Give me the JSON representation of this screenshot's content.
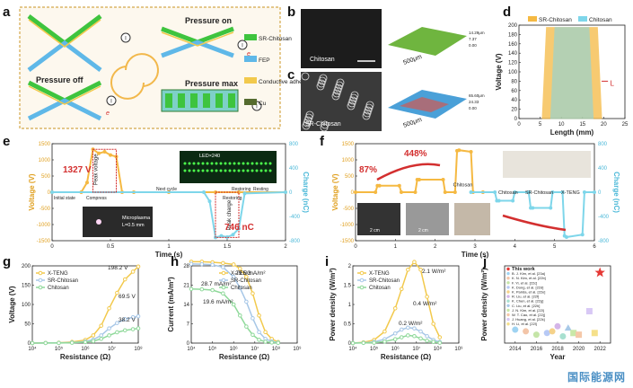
{
  "panel_letters": [
    "a",
    "b",
    "c",
    "d",
    "e",
    "f",
    "g",
    "h",
    "i",
    "j"
  ],
  "watermark": "国际能源网",
  "colors": {
    "sr": "#f5b942",
    "chitosan": "#7ed6ea",
    "xteng": "#f2c94c",
    "srline": "#a7c7e7",
    "chline": "#8fd99a",
    "red": "#d32f2f",
    "green": "#3dbb3d"
  },
  "panel_a": {
    "pressure_on": "Pressure on",
    "pressure_off": "Pressure off",
    "pressure_max": "Pressure max",
    "legend": [
      {
        "label": "SR-Chitosan",
        "color": "#3ec43e"
      },
      {
        "label": "FEP",
        "color": "#5fb8e8"
      },
      {
        "label": "Conductive adhesive",
        "color": "#f2c94c"
      },
      {
        "label": "Cu",
        "color": "#556b2f"
      }
    ],
    "meter_symbol": "I",
    "e_symbol": "e"
  },
  "panel_b": {
    "label": "Chitosan",
    "scale": "500μm",
    "colorbar": [
      "14.29μm",
      "7.37",
      "0.00"
    ]
  },
  "panel_c": {
    "label": "SR-Chitosan",
    "scale": "500μm",
    "colorbar": [
      "65.60μm",
      "24.33",
      "0.00"
    ]
  },
  "chart_data": [
    {
      "id": "d",
      "type": "area",
      "xlabel": "Length (mm)",
      "ylabel": "Voltage (V)",
      "xlim": [
        0,
        25
      ],
      "ylim": [
        0,
        200
      ],
      "xticks": [
        0,
        5,
        10,
        15,
        20,
        25
      ],
      "yticks": [
        0,
        20,
        40,
        60,
        80,
        100,
        120,
        140,
        160,
        180,
        200
      ],
      "legend": [
        "SR-Chitosan",
        "Chitosan"
      ],
      "annotation": "L",
      "series": [
        {
          "name": "SR-Chitosan",
          "x": [
            5.5,
            6.5,
            18.5,
            19.5
          ],
          "y": [
            0,
            195,
            195,
            0
          ]
        },
        {
          "name": "Chitosan",
          "x": [
            7.5,
            8.5,
            16.5,
            17.5
          ],
          "y": [
            0,
            195,
            195,
            0
          ]
        }
      ]
    },
    {
      "id": "e",
      "type": "line",
      "xlabel": "Time (s)",
      "ylabel": "Voltage (V)",
      "ylabel2": "Charge (nC)",
      "xlim": [
        0,
        2.0
      ],
      "ylim": [
        -1500,
        1500
      ],
      "ylim2": [
        -800,
        800
      ],
      "xticks": [
        0.0,
        0.5,
        1.0,
        1.5,
        2.0
      ],
      "yticks": [
        -1500,
        -1000,
        -500,
        0,
        500,
        1000,
        1500
      ],
      "yticks2": [
        -800,
        -400,
        0,
        400,
        800
      ],
      "voltage_x": [
        0.0,
        0.25,
        0.3,
        0.35,
        0.4,
        0.45,
        0.5,
        0.55,
        0.6,
        0.7,
        1.0,
        1.4,
        1.6,
        2.0
      ],
      "voltage_y": [
        0,
        0,
        300,
        1327,
        1200,
        1250,
        1150,
        1100,
        0,
        0,
        0,
        0,
        0,
        0
      ],
      "charge_x": [
        0.0,
        1.3,
        1.35,
        1.4,
        1.45,
        1.5,
        1.55,
        1.6,
        1.65,
        2.0
      ],
      "charge_y": [
        0,
        0,
        -150,
        -746,
        -720,
        -740,
        -700,
        -600,
        -20,
        0
      ],
      "labels": {
        "peak_v": "1327 V",
        "peak_voltage": "Peak voltage",
        "peak_charge": "Peak charge",
        "peak_c": "746 nC",
        "initial": "Initial state",
        "compress": "Compress",
        "next": "Next cycle",
        "restoring1": "Restoring",
        "restoring2": "Restoring",
        "resting": "Resting",
        "led": "LED×240",
        "micro1": "Microplasma",
        "micro2": "L=0.5 mm"
      }
    },
    {
      "id": "f",
      "type": "line",
      "xlabel": "Time (s)",
      "ylabel": "Voltage (V)",
      "ylabel2": "Charge (nC)",
      "xlim": [
        0,
        6
      ],
      "ylim": [
        -1500,
        1500
      ],
      "ylim2": [
        -800,
        800
      ],
      "xticks": [
        0,
        1,
        2,
        3,
        4,
        5,
        6
      ],
      "yticks": [
        -1500,
        -1000,
        -500,
        0,
        500,
        1000,
        1500
      ],
      "yticks2": [
        -800,
        -400,
        0,
        400,
        800
      ],
      "voltage_x": [
        0.0,
        0.5,
        0.55,
        0.6,
        1.1,
        1.15,
        1.5,
        1.55,
        1.6,
        2.2,
        2.25,
        2.5,
        2.55,
        2.6,
        2.9,
        2.95,
        3.2
      ],
      "voltage_y": [
        0,
        0,
        200,
        200,
        200,
        0,
        0,
        390,
        390,
        390,
        0,
        0,
        1280,
        1300,
        1250,
        0,
        0
      ],
      "charge_x": [
        2.9,
        3.5,
        3.55,
        3.6,
        3.95,
        4.0,
        4.35,
        4.4,
        4.45,
        4.9,
        4.95,
        5.2,
        5.25,
        5.3,
        5.7,
        5.75,
        6.0
      ],
      "charge_y": [
        0,
        0,
        -140,
        -140,
        -140,
        0,
        0,
        -260,
        -260,
        -260,
        0,
        0,
        -720,
        -740,
        -700,
        0,
        0
      ],
      "labels": {
        "pct1": "87%",
        "pct2": "448%",
        "chitosan": "Chitosan",
        "sr": "SR-Chitosan",
        "xteng": "X-TENG",
        "cm1": "2 cm",
        "cm2": "2 cm"
      }
    },
    {
      "id": "g",
      "type": "line",
      "xlabel": "Resistance (Ω)",
      "ylabel": "Voltage (V)",
      "log_x": true,
      "xlim": [
        4,
        8
      ],
      "ylim": [
        0,
        200
      ],
      "xticks": [
        4,
        5,
        6,
        7,
        8
      ],
      "xticklabels": [
        "10⁴",
        "10⁵",
        "10⁶",
        "10⁷",
        "10⁸"
      ],
      "yticks": [
        0,
        50,
        100,
        150,
        200
      ],
      "legend": [
        "X-TENG",
        "SR-Chitosan",
        "Chitosan"
      ],
      "series": [
        {
          "name": "X-TENG",
          "x": [
            4,
            4.5,
            5,
            5.5,
            6,
            6.3,
            6.6,
            6.9,
            7.2,
            7.5,
            7.8,
            8.1
          ],
          "y": [
            0,
            0.5,
            1,
            3,
            8,
            20,
            45,
            90,
            130,
            165,
            185,
            198.2
          ]
        },
        {
          "name": "SR-Chitosan",
          "x": [
            4,
            4.5,
            5,
            5.5,
            6,
            6.3,
            6.6,
            6.9,
            7.2,
            7.5,
            7.8,
            8.1
          ],
          "y": [
            0,
            0.3,
            0.6,
            1.5,
            4,
            9,
            20,
            38,
            52,
            62,
            67,
            69.5
          ]
        },
        {
          "name": "Chitosan",
          "x": [
            4,
            4.5,
            5,
            5.5,
            6,
            6.3,
            6.6,
            6.9,
            7.2,
            7.5,
            7.8,
            8.1
          ],
          "y": [
            0,
            0.2,
            0.4,
            1,
            2.5,
            5,
            11,
            20,
            28,
            33,
            36,
            38.2
          ]
        }
      ],
      "annotations": [
        "198.2 V",
        "69.5 V",
        "38.2 V"
      ]
    },
    {
      "id": "h",
      "type": "line",
      "xlabel": "Resistance (Ω)",
      "ylabel": "Current (mA/m²)",
      "log_x": true,
      "xlim": [
        4,
        9
      ],
      "ylim": [
        0,
        28
      ],
      "xticks": [
        4,
        5,
        6,
        7,
        8,
        9
      ],
      "xticklabels": [
        "10⁴",
        "10⁵",
        "10⁶",
        "10⁷",
        "10⁸",
        "10⁹"
      ],
      "yticks": [
        0,
        7,
        14,
        21,
        28
      ],
      "legend": [
        "X-TENG",
        "SR-Chitosan",
        "Chitosan"
      ],
      "series": [
        {
          "name": "X-TENG",
          "x": [
            4,
            4.5,
            5,
            5.5,
            6,
            6.3,
            6.6,
            6.9,
            7.2,
            7.5,
            7.8,
            8.1
          ],
          "y": [
            29.5,
            29.5,
            29.3,
            29,
            28.5,
            27,
            24,
            18,
            10,
            4,
            1.5,
            0.4
          ]
        },
        {
          "name": "SR-Chitosan",
          "x": [
            4,
            4.5,
            5,
            5.5,
            6,
            6.3,
            6.6,
            6.9,
            7.2,
            7.5,
            7.8,
            8.1
          ],
          "y": [
            28.7,
            28.6,
            28.4,
            27.5,
            24,
            20,
            15,
            9,
            4,
            1.5,
            0.6,
            0.2
          ]
        },
        {
          "name": "Chitosan",
          "x": [
            4,
            4.5,
            5,
            5.5,
            6,
            6.3,
            6.6,
            6.9,
            7.2,
            7.5,
            7.8,
            8.1
          ],
          "y": [
            19.6,
            19.5,
            19.2,
            18,
            14,
            10,
            6,
            3,
            1.2,
            0.5,
            0.2,
            0.1
          ]
        }
      ],
      "annotations": [
        "29.5 mA/m²",
        "28.7 mA/m²",
        "19.6 mA/m²"
      ]
    },
    {
      "id": "i",
      "type": "line",
      "xlabel": "Resistance (Ω)",
      "ylabel": "Power density (W/m²)",
      "log_x": true,
      "xlim": [
        4,
        9
      ],
      "ylim": [
        0,
        2.0
      ],
      "xticks": [
        4,
        5,
        6,
        7,
        8,
        9
      ],
      "xticklabels": [
        "10⁴",
        "10⁵",
        "10⁶",
        "10⁷",
        "10⁸",
        "10⁹"
      ],
      "yticks": [
        0,
        0.5,
        1.0,
        1.5,
        2.0
      ],
      "legend": [
        "X-TENG",
        "SR-Chitosan",
        "Chitosan"
      ],
      "series": [
        {
          "name": "X-TENG",
          "x": [
            4,
            4.5,
            5,
            5.5,
            6,
            6.3,
            6.6,
            6.9,
            7.2,
            7.5,
            7.8,
            8.1
          ],
          "y": [
            0,
            0.02,
            0.08,
            0.3,
            0.9,
            1.4,
            1.9,
            2.1,
            1.9,
            1.2,
            0.5,
            0.15
          ]
        },
        {
          "name": "SR-Chitosan",
          "x": [
            4,
            4.5,
            5,
            5.5,
            6,
            6.3,
            6.6,
            6.9,
            7.2,
            7.5,
            7.8,
            8.1
          ],
          "y": [
            0,
            0.01,
            0.03,
            0.1,
            0.25,
            0.35,
            0.4,
            0.38,
            0.3,
            0.18,
            0.08,
            0.03
          ]
        },
        {
          "name": "Chitosan",
          "x": [
            4,
            4.5,
            5,
            5.5,
            6,
            6.3,
            6.6,
            6.9,
            7.2,
            7.5,
            7.8,
            8.1
          ],
          "y": [
            0,
            0.005,
            0.01,
            0.04,
            0.1,
            0.15,
            0.2,
            0.18,
            0.12,
            0.06,
            0.03,
            0.01
          ]
        }
      ],
      "annotations": [
        "2.1 W/m²",
        "0.4 W/m²",
        "0.2 W/m²"
      ]
    },
    {
      "id": "j",
      "type": "scatter",
      "xlabel": "Year",
      "ylabel": "Power density (W/m²)",
      "xlim": [
        2013,
        2023
      ],
      "ylim": [
        0,
        2.3
      ],
      "xticks": [
        2014,
        2016,
        2018,
        2020,
        2022
      ],
      "legend": [
        {
          "label": "This work",
          "color": "#e53935",
          "marker": "star"
        },
        {
          "label": "B. J. Kim, et al. [23a]",
          "color": "#9fd3f2",
          "marker": "circle"
        },
        {
          "label": "K. N. Kim, et al. [22b]",
          "color": "#f3c5a8",
          "marker": "circle"
        },
        {
          "label": "F. Yi, et al. [22c]",
          "color": "#c5e5a8",
          "marker": "circle"
        },
        {
          "label": "K. Dong, et al. [22d]",
          "color": "#b7c9f5",
          "marker": "circle"
        },
        {
          "label": "K. Parida, et al. [22e]",
          "color": "#f5d28a",
          "marker": "circle"
        },
        {
          "label": "R. Liu, et al. [22f]",
          "color": "#d4b5e8",
          "marker": "circle"
        },
        {
          "label": "K. Chen, et al. [22g]",
          "color": "#a8e0d0",
          "marker": "circle"
        },
        {
          "label": "C. Liu, et al. [22h]",
          "color": "#a8c9e8",
          "marker": "triangle"
        },
        {
          "label": "J. N. Kim, et al. [22i]",
          "color": "#c9e8a8",
          "marker": "square"
        },
        {
          "label": "W. T. Cao, et al. [22j]",
          "color": "#f5c8a8",
          "marker": "square"
        },
        {
          "label": "J. Huang, et al. [22k]",
          "color": "#d8c8f5",
          "marker": "square"
        },
        {
          "label": "H. Li, et al. [22l]",
          "color": "#f5e08a",
          "marker": "square"
        }
      ],
      "points": [
        {
          "x": 2022,
          "y": 2.1,
          "ref": 0
        },
        {
          "x": 2014,
          "y": 0.4,
          "ref": 1
        },
        {
          "x": 2015,
          "y": 0.35,
          "ref": 2
        },
        {
          "x": 2016,
          "y": 0.25,
          "ref": 3
        },
        {
          "x": 2017,
          "y": 0.3,
          "ref": 4
        },
        {
          "x": 2017.5,
          "y": 0.35,
          "ref": 5
        },
        {
          "x": 2018,
          "y": 0.5,
          "ref": 6
        },
        {
          "x": 2018.5,
          "y": 0.2,
          "ref": 7
        },
        {
          "x": 2019,
          "y": 0.45,
          "ref": 8
        },
        {
          "x": 2019.5,
          "y": 0.3,
          "ref": 9
        },
        {
          "x": 2020,
          "y": 0.25,
          "ref": 10
        },
        {
          "x": 2021,
          "y": 0.95,
          "ref": 11
        },
        {
          "x": 2021.5,
          "y": 0.3,
          "ref": 12
        }
      ]
    }
  ]
}
